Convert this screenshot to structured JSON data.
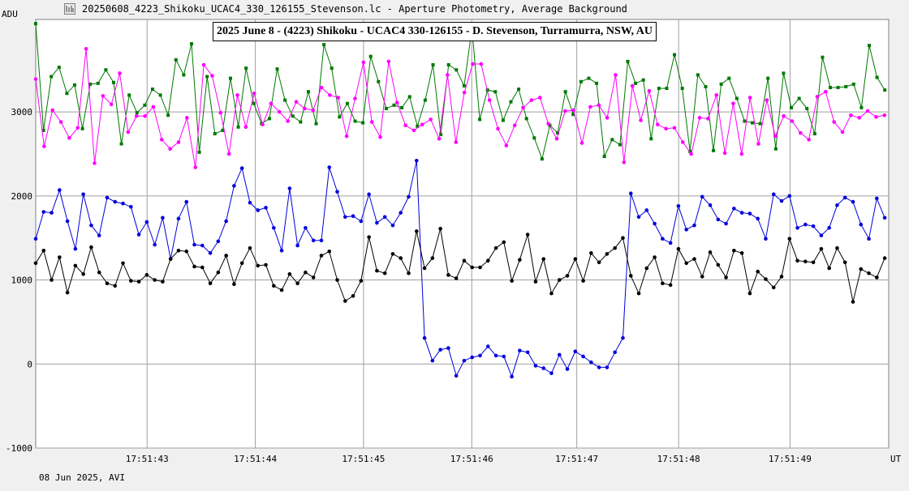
{
  "window": {
    "title": "20250608_4223_Shikoku_UCAC4_330_126155_Stevenson.lc - Aperture Photometry, Average Background"
  },
  "footer": {
    "date_text": "08 Jun 2025, AVI"
  },
  "colors": {
    "background": "#ffffff",
    "grid": "#a0a0a0",
    "green": "#007800",
    "magenta": "#ff00ff",
    "blue": "#0000dc",
    "black": "#000000"
  },
  "icons": {
    "app": "lightcurve-app-icon"
  },
  "chart_data": {
    "type": "line",
    "title": "2025 June 8 - (4223) Shikoku - UCAC4 330-126155 - D. Stevenson, Turramurra, NSW, AU",
    "ylabel": "ADU",
    "xlabel": "UT",
    "ylim": [
      -1000,
      4100
    ],
    "xlim": [
      0,
      134
    ],
    "grid": true,
    "y_ticks": [
      "3000",
      "2000",
      "1000",
      "0",
      "-1000"
    ],
    "y_tick_values": [
      3000,
      2000,
      1000,
      0,
      -1000
    ],
    "x_ticks": [
      "17:51:43",
      "17:51:44",
      "17:51:45",
      "17:51:46",
      "17:51:47",
      "17:51:48",
      "17:51:49"
    ],
    "x_tick_values": [
      17.5,
      34.5,
      51.5,
      68.5,
      85,
      101,
      118.5
    ],
    "series": [
      {
        "color": "#007800",
        "values": [
          4050,
          2780,
          3420,
          3530,
          3220,
          3320,
          2800,
          3330,
          3340,
          3500,
          3350,
          2620,
          3200,
          2990,
          3080,
          3270,
          3200,
          2960,
          3620,
          3440,
          3810,
          2520,
          3420,
          2740,
          2780,
          3400,
          2820,
          3520,
          3100,
          2860,
          2920,
          3510,
          3140,
          2950,
          2880,
          3240,
          2860,
          3800,
          3520,
          2940,
          3100,
          2890,
          2870,
          3660,
          3360,
          3040,
          3080,
          3050,
          3180,
          2830,
          3140,
          3560,
          2730,
          3560,
          3500,
          3310,
          4000,
          2910,
          3260,
          3240,
          2900,
          3120,
          3270,
          2920,
          2690,
          2440,
          2840,
          2750,
          3240,
          2970,
          3360,
          3400,
          3340,
          2470,
          2670,
          2610,
          3600,
          3340,
          3380,
          2680,
          3280,
          3280,
          3680,
          3280,
          2530,
          3440,
          3300,
          2540,
          3330,
          3400,
          3160,
          2890,
          2870,
          2860,
          3400,
          2560,
          3460,
          3050,
          3160,
          3040,
          2740,
          3650,
          3290,
          3290,
          3300,
          3330,
          3050,
          3790,
          3410,
          3260
        ],
        "marker": "square"
      },
      {
        "color": "#ff00ff",
        "values": [
          3390,
          2590,
          3020,
          2880,
          2690,
          2810,
          3750,
          2390,
          3190,
          3090,
          3460,
          2760,
          2950,
          2950,
          3060,
          2670,
          2560,
          2640,
          2930,
          2340,
          3560,
          3430,
          2990,
          2500,
          3200,
          2820,
          3220,
          2850,
          3100,
          3000,
          2890,
          3120,
          3040,
          3020,
          3290,
          3200,
          3170,
          2710,
          3160,
          3590,
          2880,
          2700,
          3600,
          3110,
          2840,
          2780,
          2850,
          2910,
          2680,
          3440,
          2640,
          3230,
          3570,
          3570,
          3140,
          2800,
          2600,
          2840,
          3050,
          3140,
          3170,
          2860,
          2680,
          3010,
          3020,
          2630,
          3060,
          3080,
          2930,
          3440,
          2400,
          3310,
          2900,
          3250,
          2850,
          2800,
          2810,
          2640,
          2500,
          2930,
          2920,
          3200,
          2510,
          3100,
          2500,
          3170,
          2620,
          3140,
          2710,
          2950,
          2890,
          2750,
          2670,
          3180,
          3240,
          2880,
          2760,
          2960,
          2930,
          3010,
          2940,
          2960
        ],
        "marker": "circle"
      },
      {
        "color": "#0000dc",
        "values": [
          1490,
          1810,
          1800,
          2070,
          1700,
          1370,
          2020,
          1650,
          1530,
          1980,
          1930,
          1910,
          1870,
          1540,
          1690,
          1420,
          1740,
          1250,
          1730,
          1930,
          1420,
          1410,
          1320,
          1460,
          1700,
          2120,
          2330,
          1920,
          1830,
          1860,
          1620,
          1350,
          2090,
          1410,
          1620,
          1470,
          1470,
          2340,
          2050,
          1750,
          1760,
          1700,
          2020,
          1680,
          1750,
          1650,
          1800,
          1990,
          2420,
          310,
          40,
          170,
          190,
          -140,
          40,
          80,
          100,
          210,
          100,
          90,
          -150,
          160,
          140,
          -20,
          -50,
          -110,
          110,
          -60,
          150,
          90,
          20,
          -40,
          -40,
          140,
          310,
          2030,
          1750,
          1830,
          1670,
          1490,
          1440,
          1880,
          1600,
          1650,
          1990,
          1890,
          1720,
          1670,
          1850,
          1800,
          1790,
          1730,
          1490,
          2020,
          1940,
          2000,
          1620,
          1660,
          1640,
          1530,
          1620,
          1890,
          1980,
          1930,
          1660,
          1490,
          1970,
          1740
        ],
        "marker": "circle"
      },
      {
        "color": "#000000",
        "values": [
          1200,
          1350,
          1000,
          1270,
          850,
          1170,
          1070,
          1390,
          1090,
          960,
          930,
          1200,
          990,
          980,
          1060,
          1000,
          980,
          1250,
          1350,
          1340,
          1160,
          1150,
          960,
          1090,
          1290,
          950,
          1200,
          1380,
          1170,
          1180,
          930,
          880,
          1070,
          960,
          1090,
          1030,
          1290,
          1340,
          1000,
          750,
          810,
          990,
          1510,
          1110,
          1080,
          1310,
          1260,
          1080,
          1580,
          1140,
          1260,
          1610,
          1060,
          1020,
          1230,
          1150,
          1150,
          1230,
          1380,
          1450,
          990,
          1240,
          1540,
          980,
          1250,
          840,
          1000,
          1050,
          1250,
          990,
          1320,
          1210,
          1310,
          1380,
          1500,
          1050,
          840,
          1140,
          1270,
          960,
          940,
          1370,
          1200,
          1250,
          1040,
          1330,
          1180,
          1030,
          1350,
          1320,
          840,
          1100,
          1010,
          910,
          1040,
          1490,
          1230,
          1220,
          1210,
          1370,
          1140,
          1380,
          1210,
          740,
          1130,
          1080,
          1030,
          1260
        ],
        "marker": "circle"
      }
    ]
  }
}
